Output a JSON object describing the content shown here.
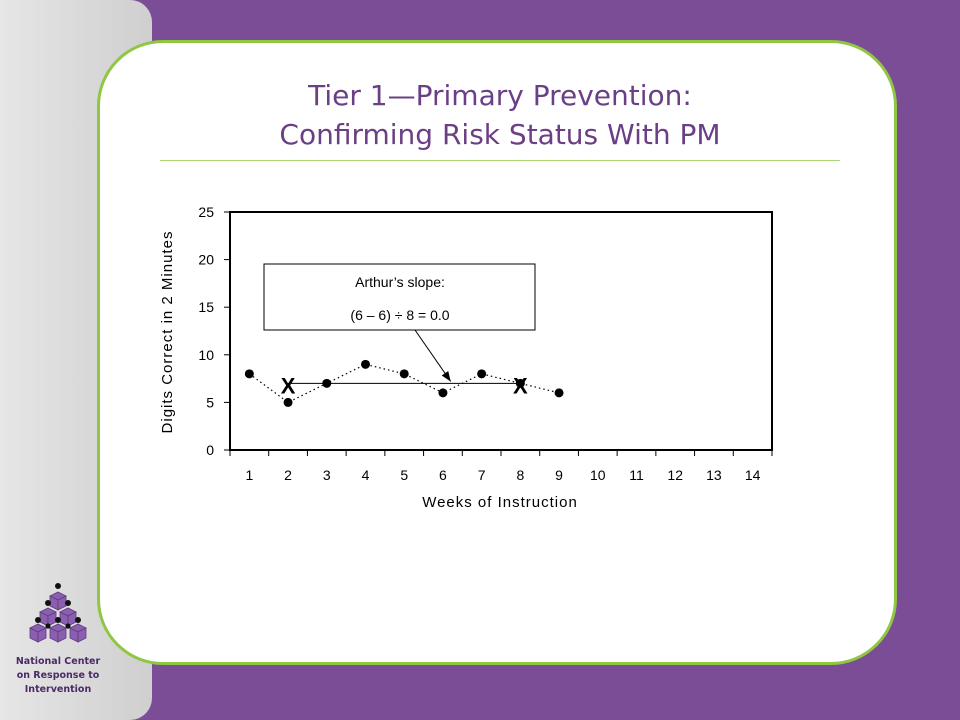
{
  "slide": {
    "title_line1": "Tier 1—Primary Prevention:",
    "title_line2": "Confirming Risk Status With PM"
  },
  "logo": {
    "line1": "National Center",
    "line2": "on Response to",
    "line3": "Intervention"
  },
  "colors": {
    "background": "#7a4d96",
    "title": "#6b3f86",
    "border": "#8fc642",
    "logo_purple": "#8b5fb0"
  },
  "chart_data": {
    "type": "line",
    "xlabel": "Weeks of Instruction",
    "ylabel": "Digits Correct in 2 Minutes",
    "xlim": [
      0.5,
      14.5
    ],
    "ylim": [
      0,
      25
    ],
    "x_ticks": [
      1,
      2,
      3,
      4,
      5,
      6,
      7,
      8,
      9,
      10,
      11,
      12,
      13,
      14
    ],
    "y_ticks": [
      0,
      5,
      10,
      15,
      20,
      25
    ],
    "grid": false,
    "series": [
      {
        "x": [
          1,
          2,
          3,
          4,
          5,
          6,
          7,
          8,
          9
        ],
        "y": [
          8,
          5,
          7,
          9,
          8,
          6,
          8,
          7,
          6
        ],
        "marker": "circle",
        "line_style": "dotted"
      }
    ],
    "slope_line": {
      "from": {
        "x": 2,
        "y": 7
      },
      "to": {
        "x": 8,
        "y": 7
      },
      "marker_text": "X"
    },
    "annotation": {
      "line1": "Arthur’s slope:",
      "line2": "(6 – 6) ÷ 8 = 0.0",
      "arrow_target": {
        "x": 6.2,
        "y": 7.2
      }
    }
  }
}
